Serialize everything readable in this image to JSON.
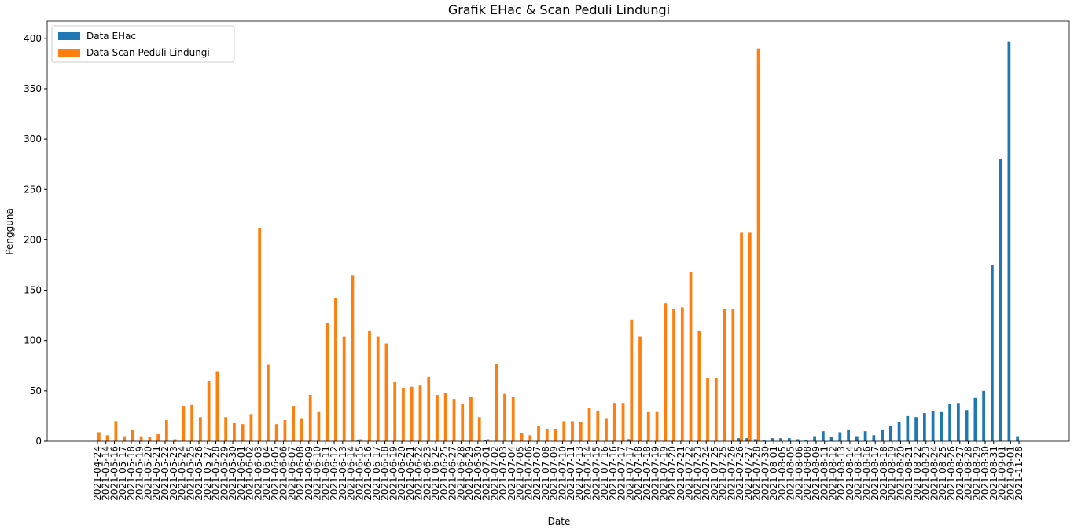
{
  "chart_data": {
    "type": "bar",
    "title": "Grafik EHac & Scan Peduli Lindungi",
    "xlabel": "Date",
    "ylabel": "Pengguna",
    "categories": [
      "2021-04-24",
      "2021-05-14",
      "2021-05-16",
      "2021-05-17",
      "2021-05-18",
      "2021-05-19",
      "2021-05-20",
      "2021-05-21",
      "2021-05-22",
      "2021-05-23",
      "2021-05-24",
      "2021-05-25",
      "2021-05-26",
      "2021-05-27",
      "2021-05-28",
      "2021-05-29",
      "2021-05-30",
      "2021-06-01",
      "2021-06-02",
      "2021-06-03",
      "2021-06-04",
      "2021-06-05",
      "2021-06-06",
      "2021-06-07",
      "2021-06-08",
      "2021-06-09",
      "2021-06-10",
      "2021-06-11",
      "2021-06-12",
      "2021-06-13",
      "2021-06-14",
      "2021-06-15",
      "2021-06-16",
      "2021-06-17",
      "2021-06-18",
      "2021-06-19",
      "2021-06-20",
      "2021-06-21",
      "2021-06-22",
      "2021-06-23",
      "2021-06-24",
      "2021-06-25",
      "2021-06-27",
      "2021-06-28",
      "2021-06-29",
      "2021-06-30",
      "2021-07-01",
      "2021-07-02",
      "2021-07-03",
      "2021-07-04",
      "2021-07-05",
      "2021-07-06",
      "2021-07-07",
      "2021-07-08",
      "2021-07-09",
      "2021-07-10",
      "2021-07-11",
      "2021-07-13",
      "2021-07-14",
      "2021-07-15",
      "2021-07-16",
      "2021-07-16",
      "2021-07-17",
      "2021-07-17",
      "2021-07-18",
      "2021-07-18",
      "2021-07-19",
      "2021-07-19",
      "2021-07-20",
      "2021-07-21",
      "2021-07-22",
      "2021-07-23",
      "2021-07-24",
      "2021-07-25",
      "2021-07-25",
      "2021-07-26",
      "2021-07-26",
      "2021-07-27",
      "2021-07-28",
      "2021-07-30",
      "2021-08-01",
      "2021-08-05",
      "2021-08-05",
      "2021-08-06",
      "2021-08-08",
      "2021-08-09",
      "2021-08-11",
      "2021-08-12",
      "2021-08-13",
      "2021-08-14",
      "2021-08-15",
      "2021-08-16",
      "2021-08-17",
      "2021-08-18",
      "2021-08-19",
      "2021-08-20",
      "2021-08-21",
      "2021-08-22",
      "2021-08-23",
      "2021-08-24",
      "2021-08-25",
      "2021-08-26",
      "2021-08-27",
      "2021-08-28",
      "2021-08-29",
      "2021-08-30",
      "2021-08-31",
      "2021-09-01",
      "2021-09-01",
      "2021-11-28"
    ],
    "series": [
      {
        "name": "Data EHac",
        "color": "#1f77b4",
        "values": [
          0,
          0,
          0,
          0,
          0,
          0,
          0,
          0,
          0,
          0,
          0,
          0,
          0,
          0,
          0,
          0,
          0,
          0,
          0,
          0,
          0,
          0,
          0,
          0,
          0,
          0,
          0,
          0,
          0,
          0,
          0,
          1,
          0,
          0,
          0,
          0,
          0,
          0,
          0,
          0,
          0,
          0,
          0,
          0,
          0,
          0,
          1,
          0,
          0,
          0,
          0,
          0,
          0,
          0,
          0,
          0,
          0,
          0,
          0,
          0,
          0,
          0,
          0,
          2,
          0,
          0,
          0,
          0,
          0,
          0,
          0,
          0,
          0,
          0,
          0,
          0,
          3,
          3,
          2,
          1,
          3,
          3,
          3,
          2,
          1,
          5,
          10,
          4,
          9,
          11,
          5,
          10,
          6,
          11,
          15,
          19,
          25,
          24,
          28,
          30,
          29,
          37,
          38,
          31,
          43,
          50,
          175,
          280,
          397,
          5
        ]
      },
      {
        "name": "Data Scan Peduli Lindungi",
        "color": "#ff7f0e",
        "values": [
          9,
          6,
          20,
          5,
          11,
          5,
          4,
          7,
          21,
          2,
          35,
          36,
          24,
          60,
          69,
          24,
          18,
          17,
          27,
          212,
          76,
          17,
          21,
          35,
          23,
          46,
          29,
          117,
          142,
          104,
          165,
          2,
          110,
          104,
          97,
          59,
          53,
          54,
          56,
          64,
          46,
          48,
          42,
          37,
          44,
          24,
          2,
          77,
          47,
          44,
          8,
          6,
          15,
          12,
          12,
          20,
          20,
          19,
          33,
          30,
          23,
          38,
          38,
          121,
          104,
          29,
          29,
          137,
          131,
          133,
          168,
          110,
          63,
          63,
          131,
          131,
          207,
          207,
          390,
          0,
          0,
          0,
          0,
          0,
          0,
          0,
          0,
          0,
          0,
          0,
          0,
          0,
          0,
          0,
          0,
          0,
          0,
          0,
          0,
          0,
          0,
          0,
          0,
          0,
          0,
          0,
          0,
          0,
          0,
          0
        ]
      }
    ],
    "ylim": [
      0,
      417
    ],
    "yticks": [
      0,
      50,
      100,
      150,
      200,
      250,
      300,
      350,
      400
    ],
    "legend": "upper left"
  }
}
